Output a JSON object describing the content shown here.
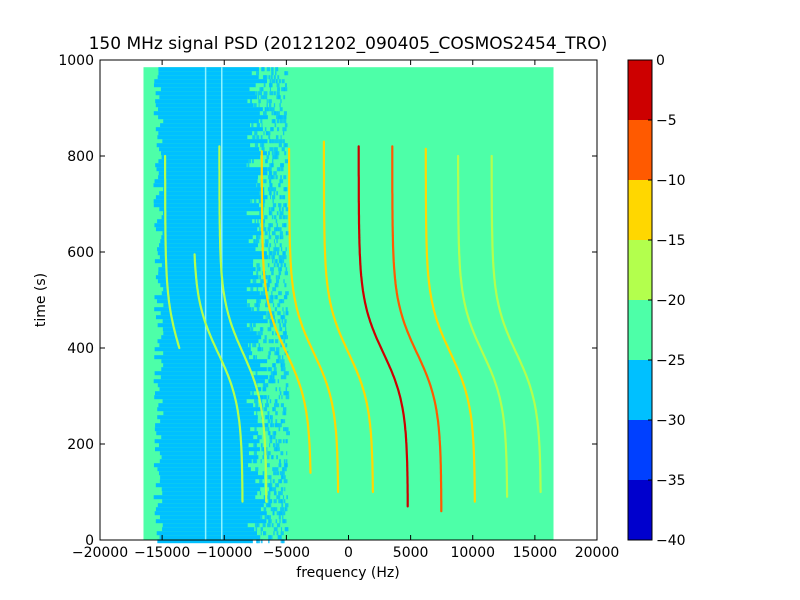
{
  "chart_data": {
    "type": "heatmap",
    "title": "150 MHz signal PSD (20121202_090405_COSMOS2454_TRO)",
    "xlabel": "frequency (Hz)",
    "ylabel": "time (s)",
    "xlim": [
      -20000,
      20000
    ],
    "ylim": [
      0,
      1000
    ],
    "x_ticks": [
      -20000,
      -15000,
      -10000,
      -5000,
      0,
      5000,
      10000,
      15000,
      20000
    ],
    "x_tick_labels": [
      "−20000",
      "−15000",
      "−10000",
      "−5000",
      "0",
      "5000",
      "10000",
      "15000",
      "20000"
    ],
    "y_ticks": [
      0,
      200,
      400,
      600,
      800,
      1000
    ],
    "y_tick_labels": [
      "0",
      "200",
      "400",
      "600",
      "800",
      "1000"
    ],
    "data_extent": {
      "x": [
        -16500,
        16500
      ],
      "y": [
        0,
        985
      ]
    },
    "background_level": -22.5,
    "noise_band": {
      "x": [
        -14500,
        -8200
      ],
      "fade_out_x": -5000,
      "level": -27.5
    },
    "colorbar": {
      "levels": [
        -40,
        -35,
        -30,
        -25,
        -20,
        -15,
        -10,
        -5,
        0
      ],
      "tick_labels": [
        "−40",
        "−35",
        "−30",
        "−25",
        "−20",
        "−15",
        "−10",
        "−5",
        "0"
      ],
      "colors": [
        "#0000cd",
        "#0040ff",
        "#00c0ff",
        "#4dffa8",
        "#b3ff4d",
        "#ffd700",
        "#ff5a00",
        "#cd0000"
      ]
    },
    "series": [
      {
        "offset": -13500,
        "t_start": 400,
        "t_end": 800,
        "amplitude": 1400,
        "level": -17.5
      },
      {
        "offset": -10500,
        "t_start": 80,
        "t_end": 595,
        "amplitude": 2200,
        "level": -17.5
      },
      {
        "offset": -8500,
        "t_start": 80,
        "t_end": 820,
        "amplitude": 2100,
        "level": -17.5
      },
      {
        "offset": -5000,
        "t_start": 140,
        "t_end": 810,
        "amplitude": 2200,
        "level": -12.5
      },
      {
        "offset": -2800,
        "t_start": 100,
        "t_end": 815,
        "amplitude": 2200,
        "level": -12.5
      },
      {
        "offset": 0,
        "t_start": 100,
        "t_end": 830,
        "amplitude": 2200,
        "level": -12.5
      },
      {
        "offset": 2800,
        "t_start": 70,
        "t_end": 820,
        "amplitude": 2200,
        "level": -2.5
      },
      {
        "offset": 5500,
        "t_start": 60,
        "t_end": 820,
        "amplitude": 2200,
        "level": -7.5
      },
      {
        "offset": 8200,
        "t_start": 80,
        "t_end": 815,
        "amplitude": 2200,
        "level": -12.5
      },
      {
        "offset": 10800,
        "t_start": 90,
        "t_end": 800,
        "amplitude": 2200,
        "level": -17.5
      },
      {
        "offset": 13500,
        "t_start": 100,
        "t_end": 800,
        "amplitude": 2200,
        "level": -17.5
      }
    ],
    "vertical_lines": [
      {
        "x": -11500,
        "level": -27.5
      },
      {
        "x": -10200,
        "level": -27.5
      }
    ],
    "grid": false,
    "legend": "colorbar-right"
  }
}
